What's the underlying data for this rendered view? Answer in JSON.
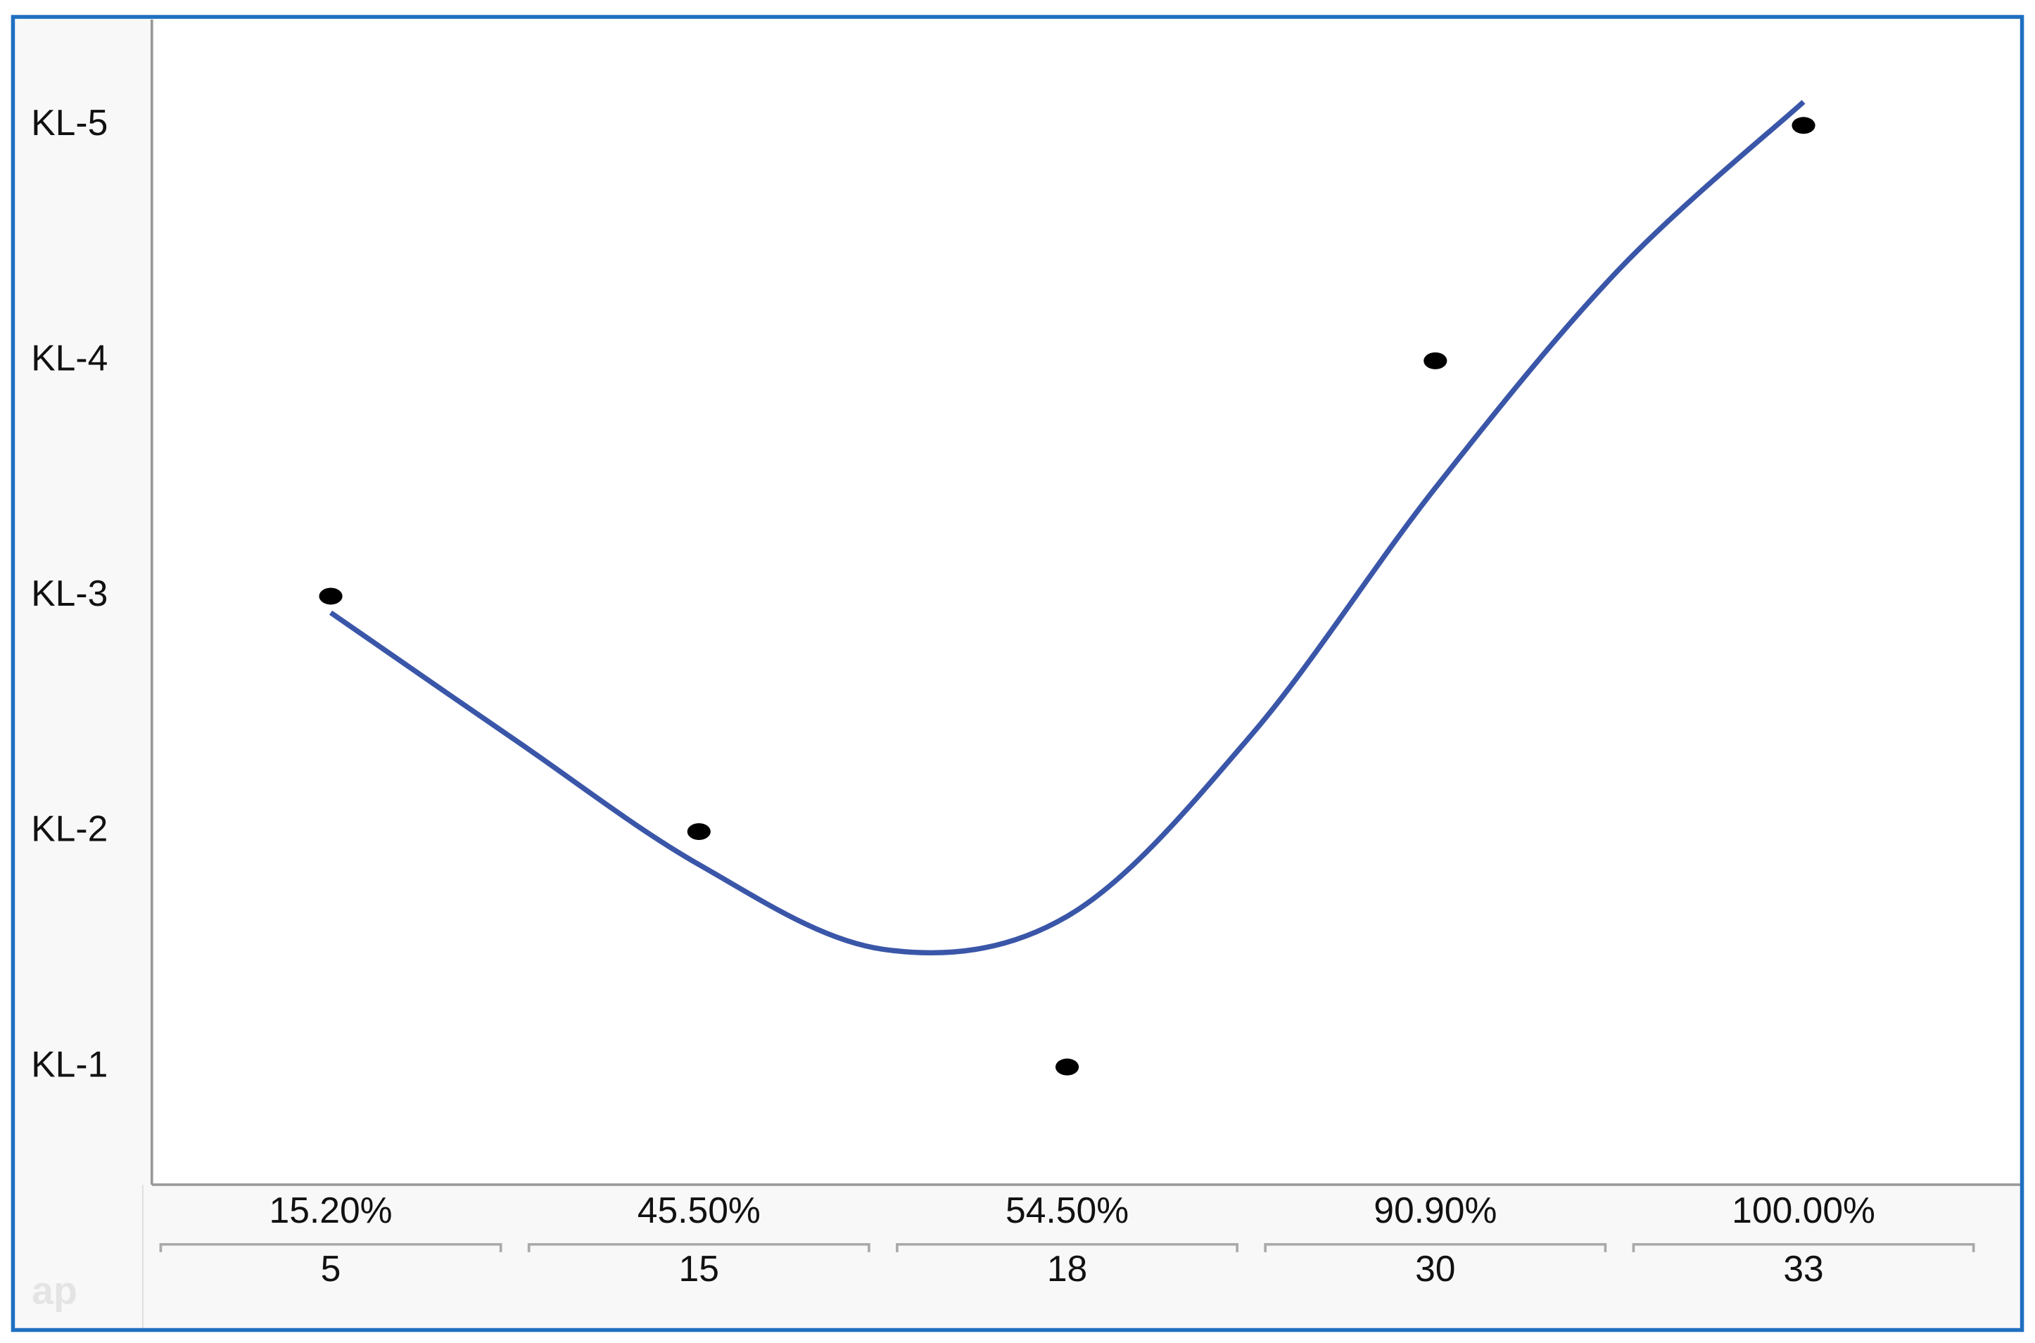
{
  "chart_data": {
    "type": "scatter",
    "categories": [
      "15.20%",
      "45.50%",
      "54.50%",
      "90.90%",
      "100.00%"
    ],
    "counts": [
      5,
      15,
      18,
      30,
      33
    ],
    "values": [
      3,
      2,
      1,
      4,
      5
    ],
    "color": "#000000",
    "ylim": [
      0.5,
      5.45
    ],
    "yticks": [
      {
        "value": 1,
        "label": "KL-1"
      },
      {
        "value": 2,
        "label": "KL-2"
      },
      {
        "value": 3,
        "label": "KL-3"
      },
      {
        "value": 4,
        "label": "KL-4"
      },
      {
        "value": 5,
        "label": "KL-5"
      }
    ],
    "fit": {
      "color": "#3a56a8",
      "x": [
        0,
        0.5,
        1,
        1.5,
        2,
        2.5,
        3,
        3.5,
        4
      ],
      "values": [
        2.93,
        2.39,
        1.86,
        1.5,
        1.64,
        2.41,
        3.46,
        4.39,
        5.1
      ]
    },
    "watermark": "ap"
  }
}
